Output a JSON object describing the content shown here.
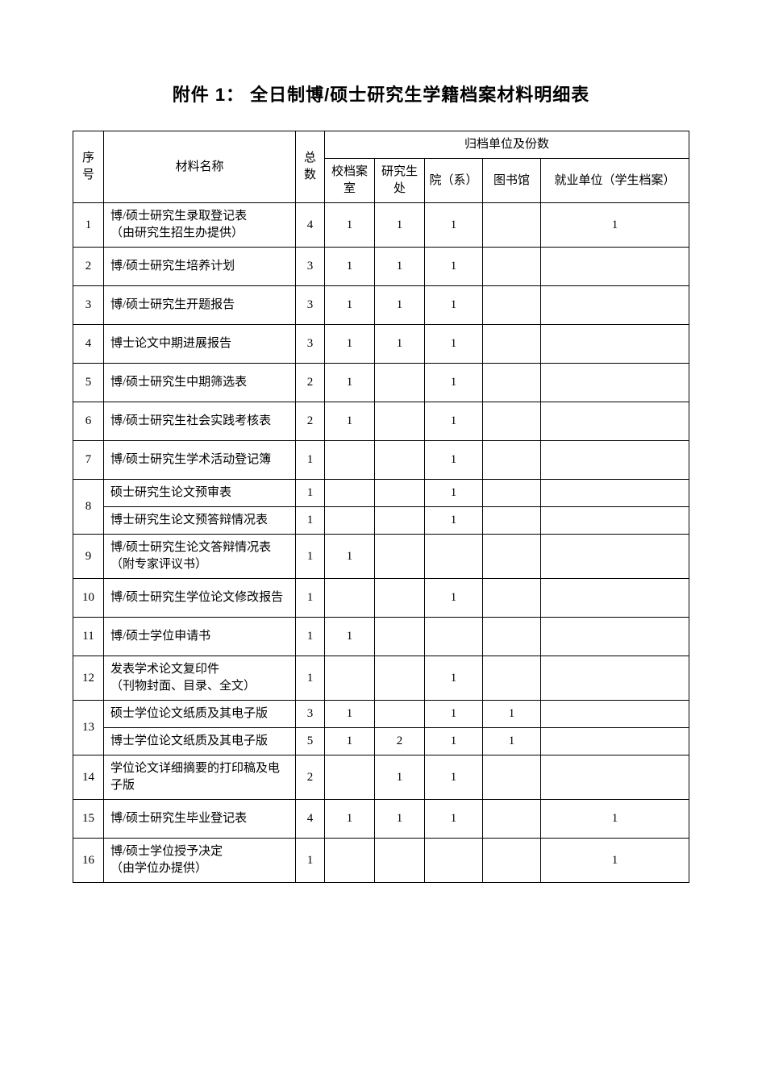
{
  "title": "附件 1：  全日制博/硕士研究生学籍档案材料明细表",
  "table": {
    "header": {
      "seq": "序号",
      "name": "材料名称",
      "total": "总数",
      "group": "归档单位及份数",
      "cols": {
        "a": "校档案室",
        "b": "研究生处",
        "c": "院（系）",
        "d": "图书馆",
        "e": "就业单位（学生档案）"
      }
    },
    "rows": [
      {
        "seq": "1",
        "name": "博/硕士研究生录取登记表\n（由研究生招生办提供）",
        "total": "4",
        "a": "1",
        "b": "1",
        "c": "1",
        "d": "",
        "e": "1",
        "h": "tall"
      },
      {
        "seq": "2",
        "name": "博/硕士研究生培养计划",
        "total": "3",
        "a": "1",
        "b": "1",
        "c": "1",
        "d": "",
        "e": "",
        "h": "med"
      },
      {
        "seq": "3",
        "name": "博/硕士研究生开题报告",
        "total": "3",
        "a": "1",
        "b": "1",
        "c": "1",
        "d": "",
        "e": "",
        "h": "med"
      },
      {
        "seq": "4",
        "name": "博士论文中期进展报告",
        "total": "3",
        "a": "1",
        "b": "1",
        "c": "1",
        "d": "",
        "e": "",
        "h": "med"
      },
      {
        "seq": "5",
        "name": "博/硕士研究生中期筛选表",
        "total": "2",
        "a": "1",
        "b": "",
        "c": "1",
        "d": "",
        "e": "",
        "h": "med"
      },
      {
        "seq": "6",
        "name": "博/硕士研究生社会实践考核表",
        "total": "2",
        "a": "1",
        "b": "",
        "c": "1",
        "d": "",
        "e": "",
        "h": "med"
      },
      {
        "seq": "7",
        "name": "博/硕士研究生学术活动登记簿",
        "total": "1",
        "a": "",
        "b": "",
        "c": "1",
        "d": "",
        "e": "",
        "h": "med"
      },
      {
        "seq": "",
        "name": "硕士研究生论文预审表",
        "total": "1",
        "a": "",
        "b": "",
        "c": "1",
        "d": "",
        "e": "",
        "h": "short",
        "mergeDownSeq": true
      },
      {
        "seq": "8",
        "name": "博士研究生论文预答辩情况表",
        "total": "1",
        "a": "",
        "b": "",
        "c": "1",
        "d": "",
        "e": "",
        "h": "short",
        "seqSpanAbove": true
      },
      {
        "seq": "9",
        "name": "博/硕士研究生论文答辩情况表\n（附专家评议书）",
        "total": "1",
        "a": "1",
        "b": "",
        "c": "",
        "d": "",
        "e": "",
        "h": "tall"
      },
      {
        "seq": "10",
        "name": "博/硕士研究生学位论文修改报告",
        "total": "1",
        "a": "",
        "b": "",
        "c": "1",
        "d": "",
        "e": "",
        "h": "med"
      },
      {
        "seq": "11",
        "name": "博/硕士学位申请书",
        "total": "1",
        "a": "1",
        "b": "",
        "c": "",
        "d": "",
        "e": "",
        "h": "med"
      },
      {
        "seq": "12",
        "name": "发表学术论文复印件\n（刊物封面、目录、全文）",
        "total": "1",
        "a": "",
        "b": "",
        "c": "1",
        "d": "",
        "e": "",
        "h": "tall"
      },
      {
        "seq": "",
        "name": "硕士学位论文纸质及其电子版",
        "total": "3",
        "a": "1",
        "b": "",
        "c": "1",
        "d": "1",
        "e": "",
        "h": "short",
        "mergeDownSeq": true
      },
      {
        "seq": "13",
        "name": "博士学位论文纸质及其电子版",
        "total": "5",
        "a": "1",
        "b": "2",
        "c": "1",
        "d": "1",
        "e": "",
        "h": "short",
        "seqSpanAbove": true
      },
      {
        "seq": "14",
        "name": "学位论文详细摘要的打印稿及电子版",
        "total": "2",
        "a": "",
        "b": "1",
        "c": "1",
        "d": "",
        "e": "",
        "h": "tall"
      },
      {
        "seq": "15",
        "name": "博/硕士研究生毕业登记表",
        "total": "4",
        "a": "1",
        "b": "1",
        "c": "1",
        "d": "",
        "e": "1",
        "h": "med"
      },
      {
        "seq": "16",
        "name": "博/硕士学位授予决定\n（由学位办提供）",
        "total": "1",
        "a": "",
        "b": "",
        "c": "",
        "d": "",
        "e": "1",
        "h": "tall"
      }
    ]
  }
}
